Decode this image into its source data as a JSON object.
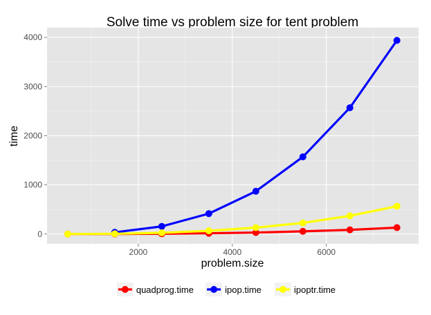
{
  "chart_data": {
    "type": "line",
    "title": "Solve time vs problem size for tent problem",
    "xlabel": "problem.size",
    "ylabel": "time",
    "xlim": [
      60,
      7960
    ],
    "ylim": [
      -200,
      4200
    ],
    "x_ticks": [
      2000,
      4000,
      6000
    ],
    "y_ticks": [
      0,
      1000,
      2000,
      3000,
      4000
    ],
    "x_tick_labels": [
      "2000",
      "4000",
      "6000"
    ],
    "y_tick_labels": [
      "0",
      "1000",
      "2000",
      "3000",
      "4000"
    ],
    "grid": true,
    "legend_position": "bottom",
    "x": [
      500,
      1500,
      2500,
      3500,
      4500,
      5500,
      6500,
      7500
    ],
    "series": [
      {
        "name": "quadprog.time",
        "color": "#ff0000",
        "x": [
          500,
          1500,
          2500,
          3500,
          4500,
          5500,
          6500,
          7500
        ],
        "values": [
          0,
          1,
          5,
          15,
          30,
          55,
          85,
          130
        ]
      },
      {
        "name": "ipop.time",
        "color": "#0000ff",
        "x": [
          1500,
          2500,
          3500,
          4500,
          5500,
          6500,
          7500
        ],
        "values": [
          35,
          155,
          415,
          870,
          1570,
          2570,
          3940
        ]
      },
      {
        "name": "ipoptr.time",
        "color": "#ffff00",
        "x": [
          500,
          1500,
          2500,
          3500,
          4500,
          5500,
          6500,
          7500
        ],
        "values": [
          0,
          5,
          25,
          65,
          130,
          225,
          370,
          565
        ]
      }
    ]
  }
}
